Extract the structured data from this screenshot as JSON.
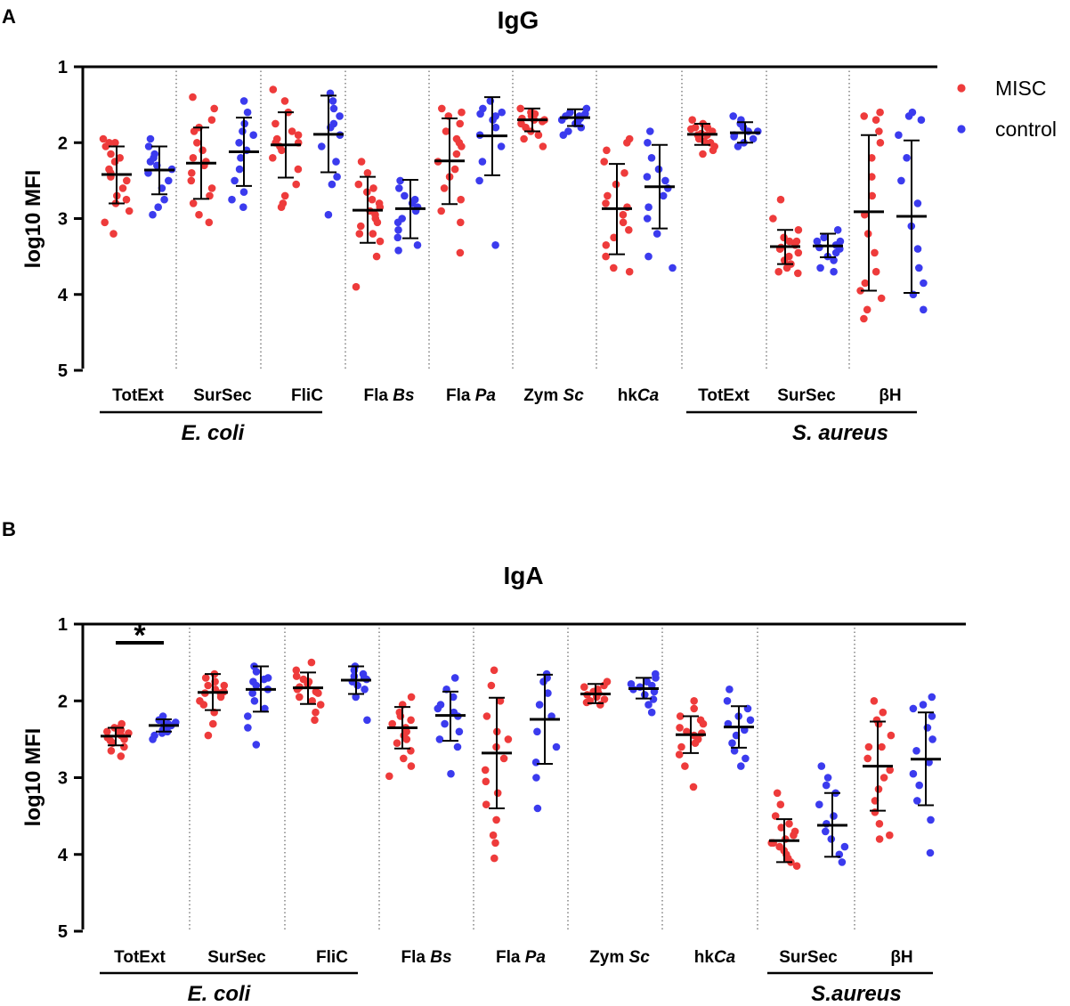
{
  "legend": {
    "items": [
      {
        "label": "MISC",
        "color": "#ee3b3b"
      },
      {
        "label": "control",
        "color": "#3b3bee"
      }
    ]
  },
  "chart_data": [
    {
      "panel": "A",
      "type": "scatter",
      "title": "IgG",
      "ylabel": "log10 MFI",
      "ylim": [
        1,
        5
      ],
      "yticks": [
        1,
        2,
        3,
        4,
        5
      ],
      "categories": [
        {
          "parts": [
            {
              "text": "TotExt",
              "italic": false
            }
          ],
          "groupsep": false
        },
        {
          "parts": [
            {
              "text": "SurSec",
              "italic": false
            }
          ],
          "groupsep": false
        },
        {
          "parts": [
            {
              "text": "FliC",
              "italic": false
            }
          ],
          "groupsep": false
        },
        {
          "parts": [
            {
              "text": "Fla ",
              "italic": false
            },
            {
              "text": "Bs",
              "italic": true
            }
          ],
          "groupsep": false
        },
        {
          "parts": [
            {
              "text": "Fla ",
              "italic": false
            },
            {
              "text": "Pa",
              "italic": true
            }
          ],
          "groupsep": false
        },
        {
          "parts": [
            {
              "text": "Zym ",
              "italic": false
            },
            {
              "text": "Sc",
              "italic": true
            }
          ],
          "groupsep": false
        },
        {
          "parts": [
            {
              "text": "hk",
              "italic": false
            },
            {
              "text": "Ca",
              "italic": true
            }
          ],
          "groupsep": false
        },
        {
          "parts": [
            {
              "text": "TotExt",
              "italic": false
            }
          ],
          "groupsep": false
        },
        {
          "parts": [
            {
              "text": "SurSec",
              "italic": false
            }
          ],
          "groupsep": false
        },
        {
          "parts": [
            {
              "text": "βH",
              "italic": false
            }
          ],
          "groupsep": false
        }
      ],
      "groups": [
        {
          "label": "E. coli",
          "from": 0,
          "to": 2
        },
        {
          "label": "S. aureus",
          "from": 7,
          "to": 9
        }
      ],
      "series": [
        {
          "name": "MISC",
          "color": "#ee3b3b",
          "values": [
            [
              1.95,
              2.0,
              2.05,
              2.15,
              2.25,
              2.35,
              2.4,
              2.45,
              2.5,
              2.6,
              2.7,
              2.75,
              2.8,
              2.9,
              3.05,
              3.2,
              2.2,
              2.0
            ],
            [
              1.4,
              1.55,
              1.7,
              1.85,
              2.0,
              2.1,
              2.2,
              2.3,
              2.4,
              2.5,
              2.6,
              2.7,
              2.8,
              2.95,
              3.05,
              2.25,
              1.8
            ],
            [
              1.3,
              1.45,
              1.6,
              1.75,
              1.85,
              1.95,
              2.0,
              2.05,
              2.1,
              2.2,
              2.35,
              2.55,
              2.7,
              2.8,
              2.85,
              1.9,
              2.0
            ],
            [
              2.25,
              2.4,
              2.55,
              2.65,
              2.75,
              2.85,
              2.9,
              2.95,
              3.0,
              3.05,
              3.1,
              3.2,
              3.3,
              3.5,
              3.9,
              2.8,
              2.6,
              3.2
            ],
            [
              1.55,
              1.65,
              1.75,
              1.85,
              1.95,
              2.05,
              2.15,
              2.25,
              2.35,
              2.45,
              2.6,
              2.75,
              2.9,
              3.05,
              3.45,
              1.6,
              2.0
            ],
            [
              1.55,
              1.6,
              1.62,
              1.65,
              1.68,
              1.7,
              1.72,
              1.75,
              1.8,
              1.85,
              1.9,
              1.95,
              2.05,
              1.7,
              1.6
            ],
            [
              1.95,
              2.1,
              2.25,
              2.4,
              2.55,
              2.7,
              2.85,
              2.95,
              3.05,
              3.15,
              3.25,
              3.35,
              3.5,
              3.65,
              3.7,
              2.0,
              2.8
            ],
            [
              1.7,
              1.75,
              1.8,
              1.82,
              1.85,
              1.88,
              1.9,
              1.92,
              1.95,
              1.98,
              2.0,
              2.05,
              2.1,
              2.15,
              1.8,
              1.9
            ],
            [
              2.75,
              3.0,
              3.15,
              3.25,
              3.3,
              3.35,
              3.38,
              3.4,
              3.45,
              3.5,
              3.55,
              3.6,
              3.65,
              3.7,
              3.72,
              3.3,
              3.4
            ],
            [
              1.6,
              1.7,
              1.85,
              2.0,
              2.2,
              2.45,
              2.7,
              2.95,
              3.2,
              3.45,
              3.7,
              3.85,
              3.95,
              4.05,
              4.2,
              4.32,
              1.65
            ]
          ],
          "mean": [
            2.42,
            2.27,
            2.03,
            2.89,
            2.24,
            1.7,
            2.87,
            1.89,
            3.37,
            2.91
          ],
          "sd_low": [
            2.05,
            1.8,
            1.6,
            2.45,
            1.68,
            1.55,
            2.28,
            1.75,
            3.15,
            1.9
          ],
          "sd_high": [
            2.8,
            2.74,
            2.46,
            3.32,
            2.81,
            1.85,
            3.47,
            2.03,
            3.6,
            3.95
          ]
        },
        {
          "name": "control",
          "color": "#3b3bee",
          "values": [
            [
              1.95,
              2.05,
              2.15,
              2.25,
              2.35,
              2.4,
              2.5,
              2.6,
              2.75,
              2.85,
              2.95,
              2.3,
              2.2
            ],
            [
              1.45,
              1.6,
              1.75,
              1.9,
              2.0,
              2.1,
              2.2,
              2.35,
              2.5,
              2.65,
              2.75,
              2.85,
              1.85
            ],
            [
              1.35,
              1.45,
              1.55,
              1.65,
              1.8,
              1.9,
              2.05,
              2.25,
              2.45,
              2.55,
              2.95,
              1.75
            ],
            [
              2.5,
              2.6,
              2.7,
              2.8,
              2.85,
              2.9,
              3.0,
              3.05,
              3.15,
              3.25,
              3.35,
              3.42,
              2.75
            ],
            [
              1.45,
              1.55,
              1.6,
              1.65,
              1.7,
              1.8,
              1.9,
              2.05,
              2.25,
              2.5,
              3.35,
              1.62
            ],
            [
              1.55,
              1.6,
              1.62,
              1.65,
              1.68,
              1.7,
              1.72,
              1.75,
              1.8,
              1.85,
              1.9,
              1.65
            ],
            [
              1.85,
              2.0,
              2.2,
              2.35,
              2.5,
              2.6,
              2.7,
              2.85,
              3.0,
              3.2,
              3.5,
              3.65,
              2.45
            ],
            [
              1.65,
              1.75,
              1.8,
              1.85,
              1.9,
              1.92,
              1.95,
              2.0,
              2.05,
              1.7,
              1.85
            ],
            [
              3.15,
              3.25,
              3.3,
              3.35,
              3.38,
              3.4,
              3.45,
              3.5,
              3.55,
              3.65,
              3.7,
              3.3
            ],
            [
              1.6,
              1.7,
              1.9,
              2.2,
              2.5,
              2.8,
              3.1,
              3.4,
              3.65,
              3.85,
              4.0,
              4.2,
              1.65
            ]
          ],
          "mean": [
            2.36,
            2.12,
            1.89,
            2.87,
            1.91,
            1.67,
            2.58,
            1.87,
            3.36,
            2.97
          ],
          "sd_low": [
            2.05,
            1.67,
            1.38,
            2.49,
            1.4,
            1.56,
            2.03,
            1.73,
            3.2,
            1.97
          ],
          "sd_high": [
            2.68,
            2.57,
            2.39,
            3.26,
            2.43,
            1.78,
            3.13,
            2.0,
            3.51,
            3.98
          ]
        }
      ],
      "significance": []
    },
    {
      "panel": "B",
      "type": "scatter",
      "title": "IgA",
      "ylabel": "log10 MFI",
      "ylim": [
        1,
        5
      ],
      "yticks": [
        1,
        2,
        3,
        4,
        5
      ],
      "categories": [
        {
          "parts": [
            {
              "text": "TotExt",
              "italic": false
            }
          ],
          "groupsep": false
        },
        {
          "parts": [
            {
              "text": "SurSec",
              "italic": false
            }
          ],
          "groupsep": false
        },
        {
          "parts": [
            {
              "text": "FliC",
              "italic": false
            }
          ],
          "groupsep": false
        },
        {
          "parts": [
            {
              "text": "Fla ",
              "italic": false
            },
            {
              "text": "Bs",
              "italic": true
            }
          ],
          "groupsep": false
        },
        {
          "parts": [
            {
              "text": "Fla ",
              "italic": false
            },
            {
              "text": "Pa",
              "italic": true
            }
          ],
          "groupsep": false
        },
        {
          "parts": [
            {
              "text": "Zym ",
              "italic": false
            },
            {
              "text": "Sc",
              "italic": true
            }
          ],
          "groupsep": false
        },
        {
          "parts": [
            {
              "text": "hk",
              "italic": false
            },
            {
              "text": "Ca",
              "italic": true
            }
          ],
          "groupsep": false
        },
        {
          "parts": [
            {
              "text": "SurSec",
              "italic": false
            }
          ],
          "groupsep": false
        },
        {
          "parts": [
            {
              "text": "βH",
              "italic": false
            }
          ],
          "groupsep": false
        }
      ],
      "groups": [
        {
          "label": "E. coli",
          "from": 0,
          "to": 2
        },
        {
          "label": "S.aureus",
          "from": 7,
          "to": 8
        }
      ],
      "series": [
        {
          "name": "MISC",
          "color": "#ee3b3b",
          "values": [
            [
              2.3,
              2.35,
              2.38,
              2.4,
              2.42,
              2.45,
              2.48,
              2.5,
              2.52,
              2.55,
              2.6,
              2.65,
              2.72,
              2.35,
              2.42
            ],
            [
              1.65,
              1.7,
              1.75,
              1.8,
              1.85,
              1.88,
              1.9,
              1.95,
              2.0,
              2.05,
              2.15,
              2.3,
              2.45,
              1.8,
              1.9
            ],
            [
              1.5,
              1.6,
              1.68,
              1.72,
              1.78,
              1.82,
              1.85,
              1.9,
              1.95,
              2.0,
              2.05,
              2.15,
              2.25,
              1.75,
              1.88
            ],
            [
              1.95,
              2.05,
              2.15,
              2.25,
              2.3,
              2.35,
              2.4,
              2.45,
              2.5,
              2.55,
              2.65,
              2.75,
              2.85,
              2.98,
              2.2
            ],
            [
              1.6,
              1.8,
              2.0,
              2.2,
              2.4,
              2.6,
              2.75,
              2.9,
              3.05,
              3.2,
              3.35,
              3.55,
              3.75,
              3.85,
              4.05,
              2.5
            ],
            [
              1.75,
              1.8,
              1.85,
              1.88,
              1.9,
              1.92,
              1.95,
              1.98,
              2.0,
              2.02,
              2.05,
              1.82,
              1.9
            ],
            [
              2.0,
              2.1,
              2.2,
              2.3,
              2.35,
              2.4,
              2.45,
              2.5,
              2.55,
              2.6,
              2.7,
              2.85,
              3.12,
              2.25,
              2.42
            ],
            [
              3.2,
              3.35,
              3.5,
              3.6,
              3.7,
              3.75,
              3.8,
              3.85,
              3.9,
              3.95,
              4.0,
              4.05,
              4.1,
              4.15,
              3.65,
              3.85
            ],
            [
              2.0,
              2.15,
              2.3,
              2.45,
              2.6,
              2.75,
              2.9,
              3.0,
              3.15,
              3.3,
              3.45,
              3.6,
              3.75,
              3.8,
              2.25,
              2.6
            ]
          ],
          "mean": [
            2.46,
            1.89,
            1.83,
            2.35,
            2.68,
            1.91,
            2.44,
            3.82,
            2.85
          ],
          "sd_low": [
            2.35,
            1.65,
            1.63,
            2.08,
            1.96,
            1.78,
            2.2,
            3.54,
            2.27
          ],
          "sd_high": [
            2.58,
            2.12,
            2.04,
            2.62,
            3.4,
            2.03,
            2.68,
            4.1,
            3.43
          ]
        },
        {
          "name": "control",
          "color": "#3b3bee",
          "values": [
            [
              2.2,
              2.25,
              2.28,
              2.3,
              2.32,
              2.35,
              2.38,
              2.4,
              2.42,
              2.45,
              2.5,
              2.3
            ],
            [
              1.55,
              1.62,
              1.7,
              1.75,
              1.8,
              1.85,
              1.9,
              2.0,
              2.1,
              2.2,
              2.35,
              2.57,
              1.72
            ],
            [
              1.55,
              1.6,
              1.65,
              1.7,
              1.72,
              1.75,
              1.8,
              1.85,
              1.95,
              2.25,
              1.68
            ],
            [
              1.7,
              1.85,
              1.95,
              2.05,
              2.15,
              2.2,
              2.3,
              2.4,
              2.5,
              2.6,
              2.95,
              2.1
            ],
            [
              1.65,
              1.75,
              1.9,
              2.05,
              2.2,
              2.4,
              2.6,
              2.8,
              3.0,
              3.4,
              1.7
            ],
            [
              1.65,
              1.7,
              1.75,
              1.8,
              1.82,
              1.85,
              1.88,
              1.92,
              1.98,
              2.05,
              2.15,
              1.78
            ],
            [
              1.85,
              2.0,
              2.1,
              2.2,
              2.3,
              2.38,
              2.45,
              2.55,
              2.65,
              2.75,
              2.85,
              2.25
            ],
            [
              2.85,
              3.0,
              3.2,
              3.35,
              3.5,
              3.6,
              3.7,
              3.8,
              3.9,
              4.0,
              4.1,
              3.1
            ],
            [
              1.95,
              2.05,
              2.2,
              2.35,
              2.5,
              2.65,
              2.8,
              2.95,
              3.1,
              3.3,
              3.55,
              3.98,
              2.1
            ]
          ],
          "mean": [
            2.32,
            1.85,
            1.73,
            2.19,
            2.24,
            1.84,
            2.34,
            3.62,
            2.76
          ],
          "sd_low": [
            2.24,
            1.55,
            1.55,
            1.88,
            1.66,
            1.7,
            2.07,
            3.2,
            2.15
          ],
          "sd_high": [
            2.4,
            2.14,
            1.91,
            2.52,
            2.82,
            1.97,
            2.61,
            4.03,
            3.36
          ]
        }
      ],
      "significance": [
        {
          "category": 0,
          "label": "*"
        }
      ]
    }
  ]
}
